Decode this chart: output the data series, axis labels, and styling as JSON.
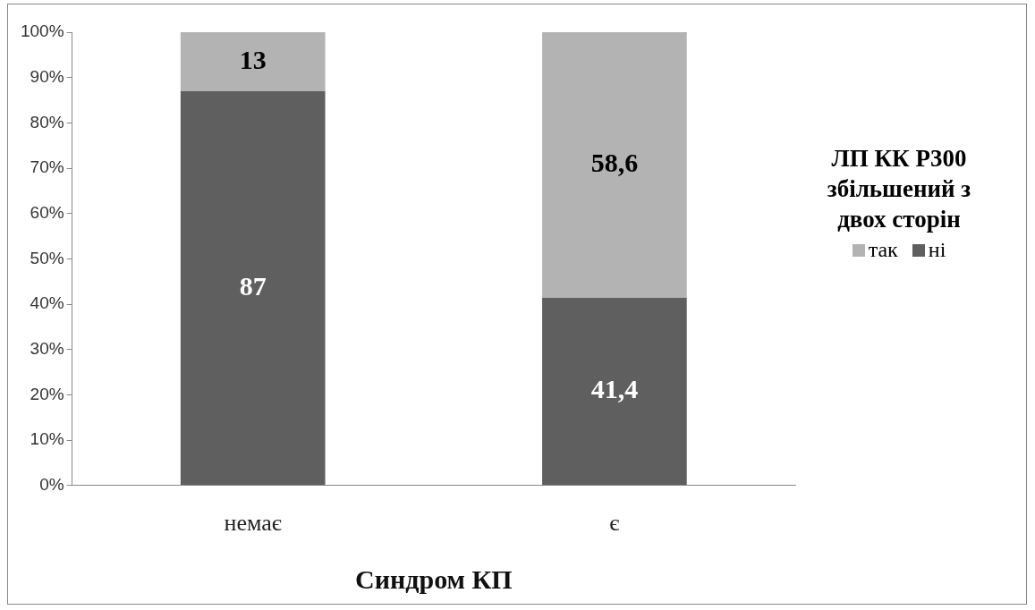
{
  "chart_data": {
    "type": "bar",
    "stacked": true,
    "categories": [
      "немає",
      "є"
    ],
    "series": [
      {
        "name": "ні",
        "color": "#5f5f5f",
        "values": [
          87,
          41.4
        ],
        "value_labels": [
          "87",
          "41,4"
        ]
      },
      {
        "name": "так",
        "color": "#b3b3b3",
        "values": [
          13,
          58.6
        ],
        "value_labels": [
          "13",
          "58,6"
        ]
      }
    ],
    "ylim": [
      0,
      100
    ],
    "yticks": [
      {
        "value": 0,
        "label": "0%"
      },
      {
        "value": 10,
        "label": "10%"
      },
      {
        "value": 20,
        "label": "20%"
      },
      {
        "value": 30,
        "label": "30%"
      },
      {
        "value": 40,
        "label": "40%"
      },
      {
        "value": 50,
        "label": "50%"
      },
      {
        "value": 60,
        "label": "60%"
      },
      {
        "value": 70,
        "label": "70%"
      },
      {
        "value": 80,
        "label": "80%"
      },
      {
        "value": 90,
        "label": "90%"
      },
      {
        "value": 100,
        "label": "100%"
      }
    ],
    "xlabel": "Синдром КП",
    "legend_title": "ЛП КК Р300 збільшений з двох сторін",
    "legend": "right",
    "grid": false
  }
}
